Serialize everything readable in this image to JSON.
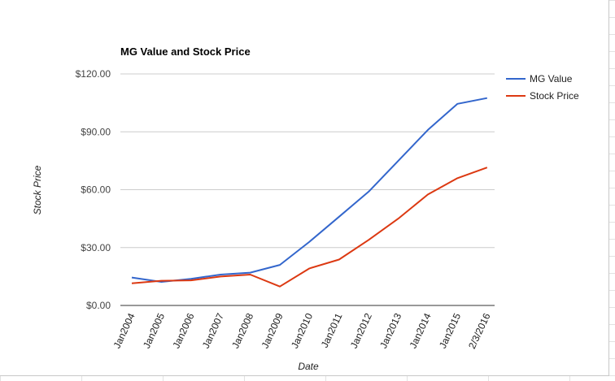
{
  "chart_data": {
    "type": "line",
    "title": "MG Value and Stock Price",
    "xlabel": "Date",
    "ylabel": "Stock Price",
    "categories": [
      "Jan2004",
      "Jan2005",
      "Jan2006",
      "Jan2007",
      "Jan2008",
      "Jan2009",
      "Jan2010",
      "Jan2011",
      "Jan2012",
      "Jan2013",
      "Jan2014",
      "Jan2015",
      "2/3/2016"
    ],
    "ylim": [
      0,
      120
    ],
    "yticks": [
      "$0.00",
      "$30.00",
      "$60.00",
      "$90.00",
      "$120.00"
    ],
    "ytick_values": [
      0,
      30,
      60,
      90,
      120
    ],
    "grid": true,
    "legend_position": "right",
    "series": [
      {
        "name": "MG Value",
        "color": "#3366cc",
        "values": [
          14.5,
          12.2,
          13.8,
          16.0,
          17.0,
          21.0,
          33.0,
          46.0,
          59.0,
          75.0,
          91.0,
          104.5,
          107.5
        ]
      },
      {
        "name": "Stock Price",
        "color": "#dc3912",
        "values": [
          11.5,
          12.8,
          13.0,
          15.0,
          16.0,
          9.8,
          19.2,
          23.8,
          34.0,
          45.0,
          57.5,
          66.0,
          71.5
        ]
      }
    ]
  }
}
